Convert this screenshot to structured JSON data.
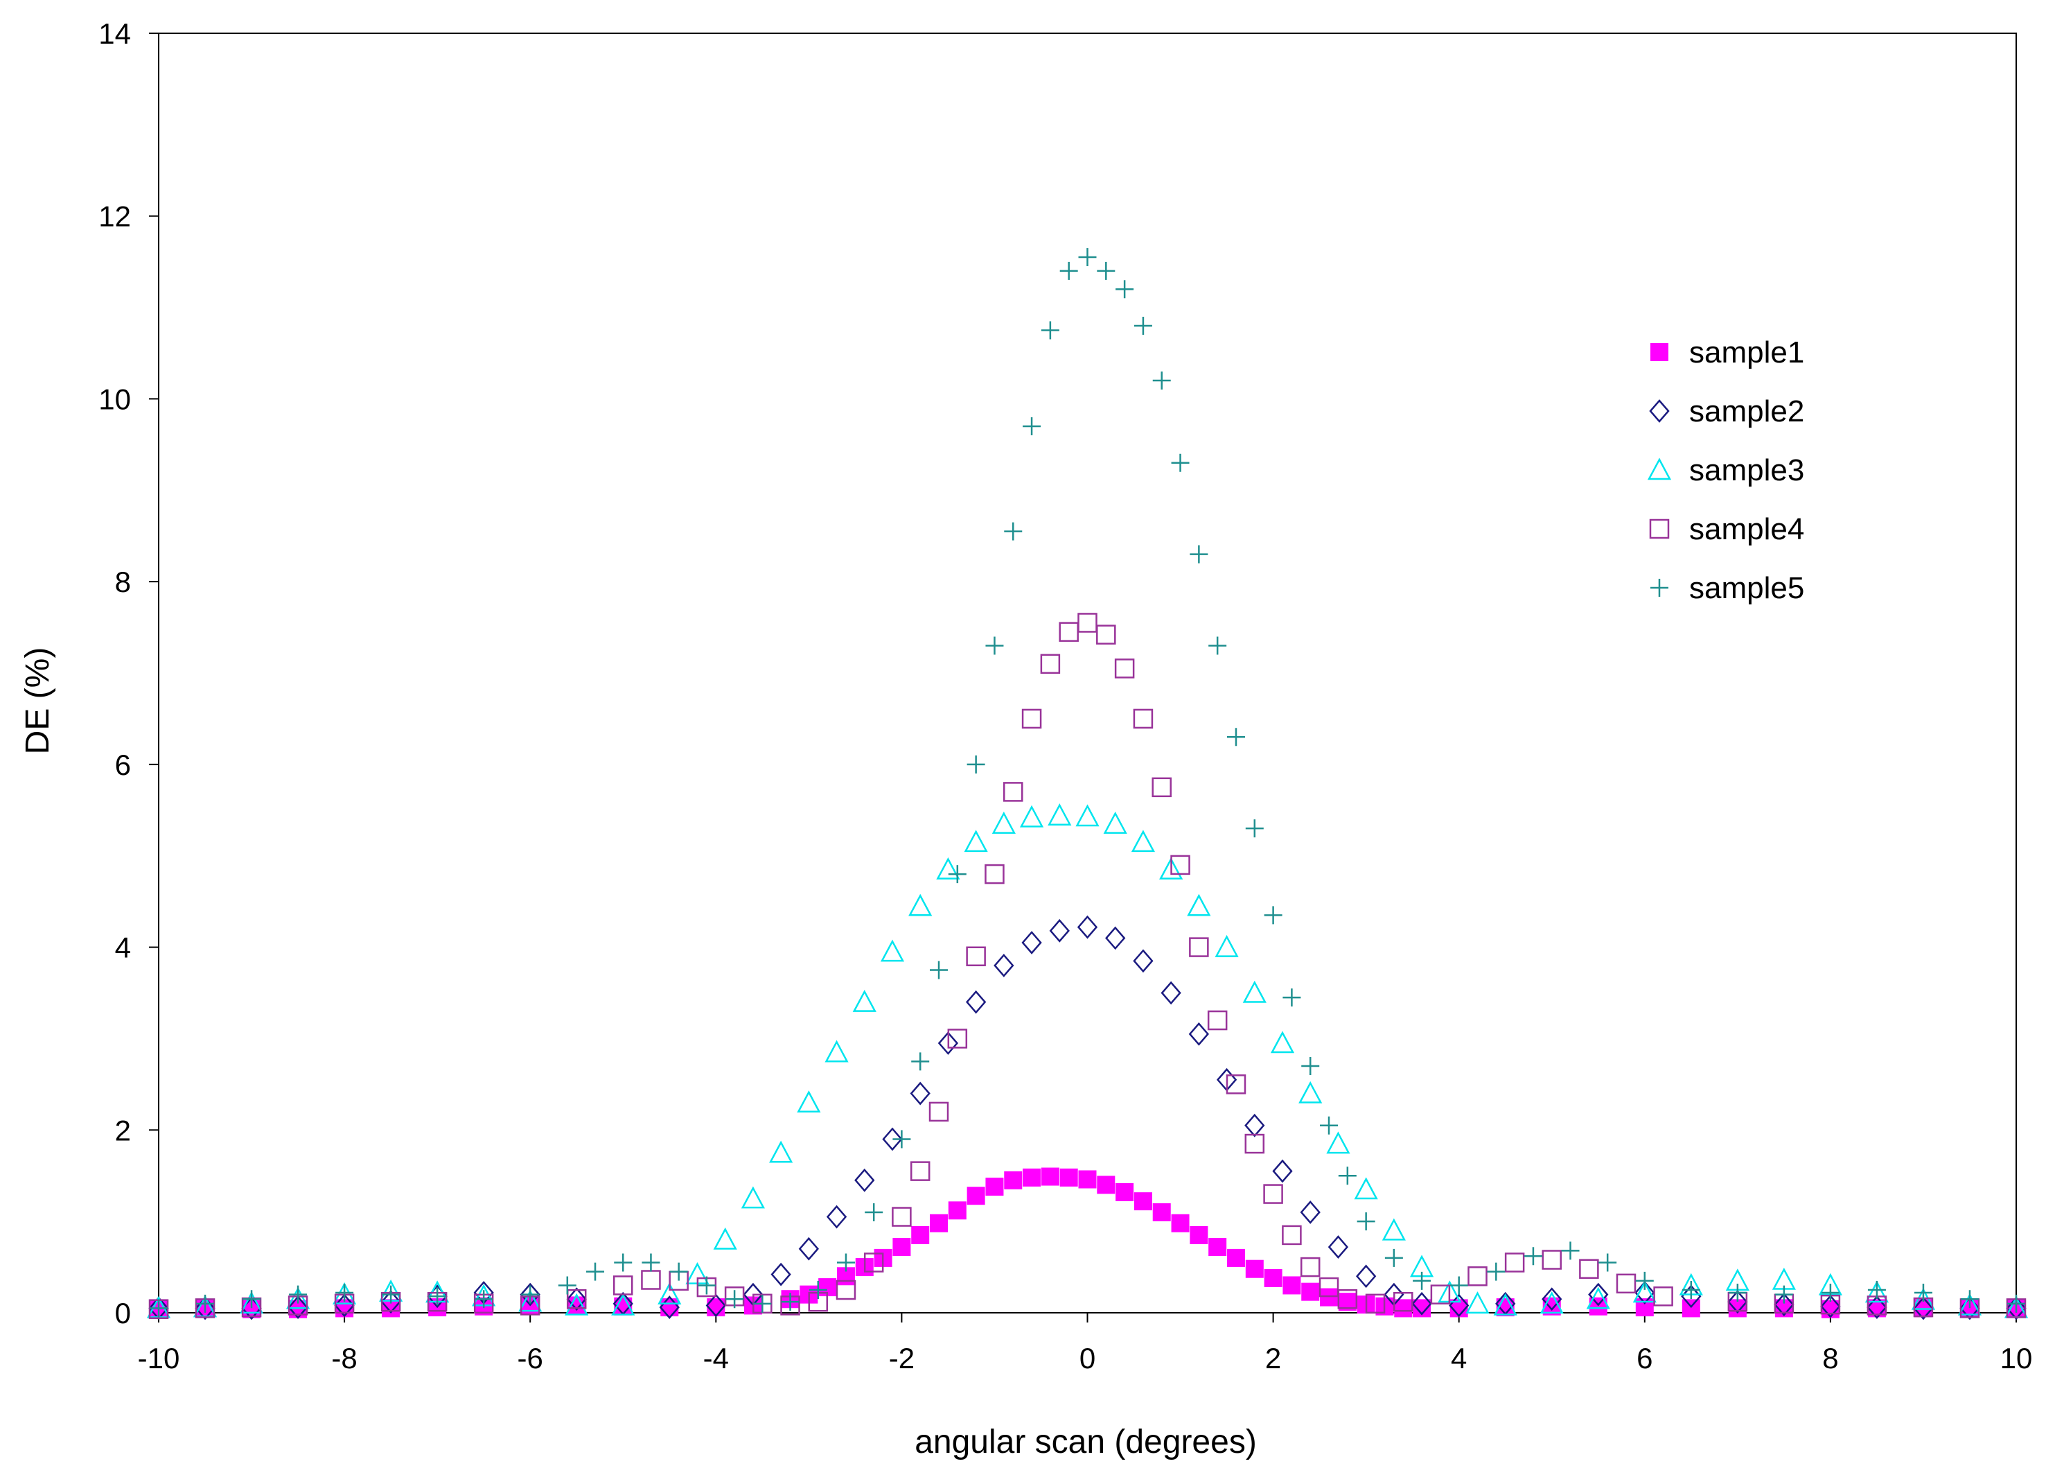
{
  "chart_data": {
    "type": "scatter",
    "title": "",
    "xlabel": "angular scan (degrees)",
    "ylabel": "DE (%)",
    "xlim": [
      -10,
      10
    ],
    "ylim": [
      0,
      14
    ],
    "xticks": [
      -10,
      -8,
      -6,
      -4,
      -2,
      0,
      2,
      4,
      6,
      8,
      10
    ],
    "yticks": [
      0,
      2,
      4,
      6,
      8,
      10,
      12,
      14
    ],
    "xtick_labels": [
      "-10",
      "-8",
      "-6",
      "-4",
      "-2",
      "0",
      "2",
      "4",
      "6",
      "8",
      "10"
    ],
    "ytick_labels": [
      "0",
      "2",
      "4",
      "6",
      "8",
      "10",
      "12",
      "14"
    ],
    "grid": false,
    "legend_position": "right",
    "series": [
      {
        "name": "sample1",
        "marker": "filled-square",
        "color": "#ff00ff",
        "x": [
          -10.0,
          -9.5,
          -9.0,
          -8.5,
          -8.0,
          -7.5,
          -7.0,
          -6.5,
          -6.0,
          -5.5,
          -5.0,
          -4.5,
          -4.0,
          -3.6,
          -3.2,
          -3.0,
          -2.8,
          -2.6,
          -2.4,
          -2.2,
          -2.0,
          -1.8,
          -1.6,
          -1.4,
          -1.2,
          -1.0,
          -0.8,
          -0.6,
          -0.4,
          -0.2,
          0.0,
          0.2,
          0.4,
          0.6,
          0.8,
          1.0,
          1.2,
          1.4,
          1.6,
          1.8,
          2.0,
          2.2,
          2.4,
          2.6,
          2.8,
          3.0,
          3.2,
          3.4,
          3.6,
          4.0,
          4.5,
          5.0,
          5.5,
          6.0,
          6.5,
          7.0,
          7.5,
          8.0,
          8.5,
          9.0,
          9.5,
          10.0
        ],
        "y": [
          0.05,
          0.05,
          0.04,
          0.04,
          0.05,
          0.05,
          0.06,
          0.07,
          0.08,
          0.08,
          0.07,
          0.06,
          0.06,
          0.08,
          0.15,
          0.2,
          0.28,
          0.4,
          0.5,
          0.6,
          0.72,
          0.85,
          0.98,
          1.12,
          1.28,
          1.38,
          1.45,
          1.48,
          1.49,
          1.48,
          1.46,
          1.4,
          1.32,
          1.22,
          1.1,
          0.98,
          0.85,
          0.72,
          0.6,
          0.48,
          0.38,
          0.3,
          0.23,
          0.17,
          0.12,
          0.09,
          0.07,
          0.05,
          0.05,
          0.05,
          0.06,
          0.07,
          0.07,
          0.06,
          0.05,
          0.05,
          0.05,
          0.04,
          0.05,
          0.05,
          0.05,
          0.05
        ]
      },
      {
        "name": "sample2",
        "marker": "open-diamond",
        "color": "#1a1a80",
        "x": [
          -10.0,
          -9.5,
          -9.0,
          -8.5,
          -8.0,
          -7.5,
          -7.0,
          -6.5,
          -6.0,
          -5.5,
          -5.0,
          -4.5,
          -4.0,
          -3.6,
          -3.3,
          -3.0,
          -2.7,
          -2.4,
          -2.1,
          -1.8,
          -1.5,
          -1.2,
          -0.9,
          -0.6,
          -0.3,
          0.0,
          0.3,
          0.6,
          0.9,
          1.2,
          1.5,
          1.8,
          2.1,
          2.4,
          2.7,
          3.0,
          3.3,
          3.6,
          4.0,
          4.5,
          5.0,
          5.5,
          6.0,
          6.5,
          7.0,
          7.5,
          8.0,
          8.5,
          9.0,
          9.5,
          10.0
        ],
        "y": [
          0.05,
          0.05,
          0.05,
          0.06,
          0.08,
          0.12,
          0.18,
          0.22,
          0.2,
          0.15,
          0.1,
          0.06,
          0.08,
          0.2,
          0.42,
          0.7,
          1.05,
          1.45,
          1.9,
          2.4,
          2.95,
          3.4,
          3.8,
          4.05,
          4.18,
          4.22,
          4.1,
          3.85,
          3.5,
          3.05,
          2.55,
          2.05,
          1.55,
          1.1,
          0.72,
          0.4,
          0.2,
          0.1,
          0.08,
          0.1,
          0.15,
          0.2,
          0.22,
          0.18,
          0.12,
          0.09,
          0.07,
          0.06,
          0.05,
          0.05,
          0.05
        ]
      },
      {
        "name": "sample3",
        "marker": "open-triangle",
        "color": "#00e5ee",
        "x": [
          -10.0,
          -9.5,
          -9.0,
          -8.5,
          -8.0,
          -7.5,
          -7.0,
          -6.5,
          -6.0,
          -5.5,
          -5.0,
          -4.5,
          -4.2,
          -3.9,
          -3.6,
          -3.3,
          -3.0,
          -2.7,
          -2.4,
          -2.1,
          -1.8,
          -1.5,
          -1.2,
          -0.9,
          -0.6,
          -0.3,
          0.0,
          0.3,
          0.6,
          0.9,
          1.2,
          1.5,
          1.8,
          2.1,
          2.4,
          2.7,
          3.0,
          3.3,
          3.6,
          3.9,
          4.2,
          4.5,
          5.0,
          5.5,
          6.0,
          6.5,
          7.0,
          7.5,
          8.0,
          8.5,
          9.0,
          9.5,
          10.0
        ],
        "y": [
          0.05,
          0.06,
          0.1,
          0.15,
          0.2,
          0.23,
          0.22,
          0.18,
          0.12,
          0.08,
          0.08,
          0.2,
          0.42,
          0.8,
          1.25,
          1.75,
          2.3,
          2.85,
          3.4,
          3.95,
          4.45,
          4.85,
          5.15,
          5.35,
          5.42,
          5.44,
          5.43,
          5.35,
          5.15,
          4.85,
          4.45,
          4.0,
          3.5,
          2.95,
          2.4,
          1.85,
          1.35,
          0.9,
          0.5,
          0.22,
          0.1,
          0.08,
          0.1,
          0.15,
          0.22,
          0.3,
          0.35,
          0.36,
          0.3,
          0.22,
          0.14,
          0.08,
          0.05
        ]
      },
      {
        "name": "sample4",
        "marker": "open-square",
        "color": "#993399",
        "x": [
          -10.0,
          -9.5,
          -9.0,
          -8.5,
          -8.0,
          -7.5,
          -7.0,
          -6.5,
          -6.0,
          -5.5,
          -5.0,
          -4.7,
          -4.4,
          -4.1,
          -3.8,
          -3.5,
          -3.2,
          -2.9,
          -2.6,
          -2.3,
          -2.0,
          -1.8,
          -1.6,
          -1.4,
          -1.2,
          -1.0,
          -0.8,
          -0.6,
          -0.4,
          -0.2,
          0.0,
          0.2,
          0.4,
          0.6,
          0.8,
          1.0,
          1.2,
          1.4,
          1.6,
          1.8,
          2.0,
          2.2,
          2.4,
          2.6,
          2.8,
          3.1,
          3.4,
          3.8,
          4.2,
          4.6,
          5.0,
          5.4,
          5.8,
          6.2,
          7.0,
          7.5,
          8.0,
          8.5,
          9.0,
          9.5,
          10.0
        ],
        "y": [
          0.04,
          0.05,
          0.06,
          0.08,
          0.1,
          0.12,
          0.12,
          0.1,
          0.08,
          0.15,
          0.3,
          0.36,
          0.35,
          0.28,
          0.18,
          0.1,
          0.08,
          0.12,
          0.25,
          0.55,
          1.05,
          1.55,
          2.2,
          3.0,
          3.9,
          4.8,
          5.7,
          6.5,
          7.1,
          7.45,
          7.55,
          7.42,
          7.05,
          6.5,
          5.75,
          4.9,
          4.0,
          3.2,
          2.5,
          1.85,
          1.3,
          0.85,
          0.5,
          0.28,
          0.15,
          0.1,
          0.12,
          0.2,
          0.4,
          0.55,
          0.58,
          0.48,
          0.32,
          0.18,
          0.12,
          0.1,
          0.09,
          0.08,
          0.06,
          0.05,
          0.05
        ]
      },
      {
        "name": "sample5",
        "marker": "plus",
        "color": "#1f8f8f",
        "x": [
          -10.0,
          -9.5,
          -9.0,
          -8.5,
          -8.0,
          -7.5,
          -7.0,
          -6.5,
          -6.0,
          -5.6,
          -5.3,
          -5.0,
          -4.7,
          -4.4,
          -4.1,
          -3.8,
          -3.5,
          -3.2,
          -2.9,
          -2.6,
          -2.3,
          -2.0,
          -1.8,
          -1.6,
          -1.4,
          -1.2,
          -1.0,
          -0.8,
          -0.6,
          -0.4,
          -0.2,
          0.0,
          0.2,
          0.4,
          0.6,
          0.8,
          1.0,
          1.2,
          1.4,
          1.6,
          1.8,
          2.0,
          2.2,
          2.4,
          2.6,
          2.8,
          3.0,
          3.3,
          3.6,
          4.0,
          4.4,
          4.8,
          5.2,
          5.6,
          6.0,
          6.5,
          7.0,
          7.5,
          8.0,
          8.5,
          9.0,
          9.5,
          10.0
        ],
        "y": [
          0.05,
          0.1,
          0.15,
          0.2,
          0.22,
          0.2,
          0.18,
          0.15,
          0.2,
          0.3,
          0.45,
          0.55,
          0.55,
          0.45,
          0.3,
          0.15,
          0.1,
          0.12,
          0.25,
          0.55,
          1.1,
          1.9,
          2.75,
          3.75,
          4.8,
          6.0,
          7.3,
          8.55,
          9.7,
          10.75,
          11.4,
          11.55,
          11.4,
          11.2,
          10.8,
          10.2,
          9.3,
          8.3,
          7.3,
          6.3,
          5.3,
          4.35,
          3.45,
          2.7,
          2.05,
          1.5,
          1.0,
          0.6,
          0.35,
          0.3,
          0.45,
          0.62,
          0.68,
          0.55,
          0.35,
          0.25,
          0.22,
          0.2,
          0.22,
          0.25,
          0.22,
          0.15,
          0.1
        ]
      }
    ]
  }
}
